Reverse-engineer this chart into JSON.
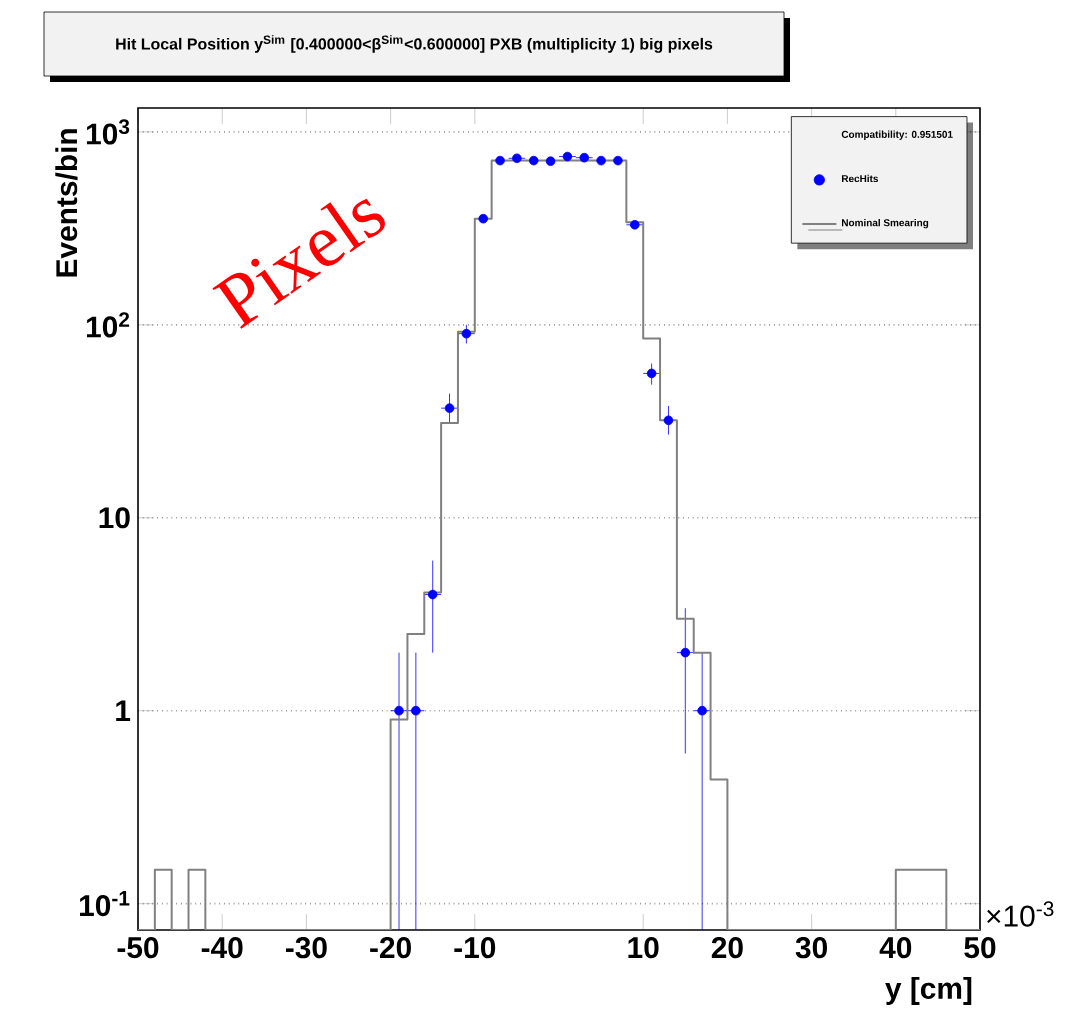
{
  "chart_data": {
    "type": "histogram",
    "title": "Hit Local Position y$^{Sim}$ [0.400000<β$^{Sim}$<0.600000] PXB (multiplicity 1) big pixels",
    "xlabel": "y [cm]",
    "ylabel": "Events/bin",
    "legend_title": "Compatibility: 0.951501",
    "annotations": [
      "Pixels",
      "×10$^{-3}$"
    ],
    "bins": [
      -50,
      -48,
      -46,
      -44,
      -42,
      -40,
      -38,
      -36,
      -34,
      -32,
      -30,
      -28,
      -26,
      -24,
      -22,
      -20,
      -18,
      -16,
      -14,
      -12,
      -10,
      -8,
      -6,
      -4,
      -2,
      0,
      2,
      4,
      6,
      8,
      10,
      12,
      14,
      16,
      18,
      20,
      22,
      24,
      26,
      28,
      30,
      32,
      34,
      36,
      38,
      40,
      42,
      44,
      46,
      48,
      50
    ],
    "series": [
      {
        "name": "RecHits",
        "type": "scatter",
        "color": "#0000ff",
        "x": [
          -19,
          -17,
          -15,
          -13,
          -11,
          -9,
          -7,
          -5,
          -3,
          -1,
          1,
          3,
          5,
          7,
          9,
          11,
          13,
          15,
          17
        ],
        "values": [
          1,
          1,
          4,
          37,
          90,
          355,
          710,
          730,
          710,
          705,
          745,
          735,
          710,
          710,
          330,
          56,
          32,
          2,
          1
        ],
        "errors": [
          [
            0.073,
            2
          ],
          [
            0.073,
            2
          ],
          [
            2,
            6
          ],
          [
            31,
            44
          ],
          [
            80,
            100
          ],
          null,
          null,
          null,
          null,
          null,
          null,
          null,
          null,
          null,
          null,
          [
            49,
            63
          ],
          [
            27,
            38
          ],
          [
            0.6,
            3.4
          ],
          [
            0.073,
            2
          ]
        ],
        "xerrors": [
          1,
          1,
          1,
          1,
          1,
          null,
          1,
          1,
          1,
          null,
          1,
          1,
          1,
          null,
          1,
          1,
          null,
          1,
          1
        ]
      },
      {
        "name": "Nominal Smearing",
        "color": "#808080",
        "values": [
          null,
          0.15,
          null,
          0.15,
          null,
          null,
          null,
          null,
          null,
          null,
          null,
          null,
          null,
          null,
          null,
          0.9,
          2.5,
          4.1,
          31,
          92,
          355,
          710,
          710,
          710,
          710,
          710,
          710,
          710,
          710,
          340,
          85,
          32,
          3,
          2,
          0.44,
          null,
          null,
          null,
          null,
          null,
          null,
          null,
          null,
          null,
          null,
          0.15,
          0.15,
          0.15,
          null,
          null
        ]
      }
    ],
    "xlim": [
      -50,
      50
    ],
    "xticks": [
      -50,
      -40,
      -30,
      -20,
      -10,
      10,
      20,
      30,
      40,
      50
    ],
    "ylim": [
      0.073,
      1330
    ],
    "log": "y",
    "yticks": [
      {
        "value": 0.1,
        "label": "10$^{-1}$"
      },
      1,
      10,
      {
        "value": 100,
        "label": "10$^{2}$"
      },
      {
        "value": 1000,
        "label": "10$^{3}$"
      }
    ],
    "grid": "y",
    "legend": "top right",
    "marker": "circle"
  }
}
